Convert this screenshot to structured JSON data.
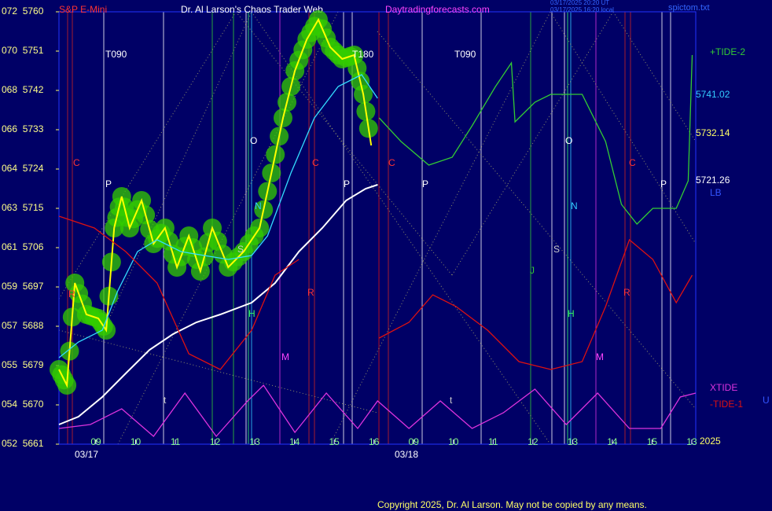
{
  "chart_data": {
    "type": "line",
    "title": "Dr. Al Larson's Chaos Trader Web",
    "subtitle": "S&P E-Mini",
    "site": "Daytradingforecasts.com",
    "stamps": [
      "03/17/2025 20:20 UT",
      "03/17/2025 16:20 local",
      "spictom.txt"
    ],
    "copyright": "Copyright 2025, Dr. Al Larson. May not be copied by any means.",
    "dates": [
      "03/17",
      "03/18",
      "2025"
    ],
    "ylim": [
      5661,
      5760
    ],
    "yticks": [
      {
        "value": 5760,
        "label": "072  5760"
      },
      {
        "value": 5751,
        "label": "070  5751"
      },
      {
        "value": 5742,
        "label": "068  5742"
      },
      {
        "value": 5733,
        "label": "066  5733"
      },
      {
        "value": 5724,
        "label": "064  5724"
      },
      {
        "value": 5715,
        "label": "063  5715"
      },
      {
        "value": 5706,
        "label": "061  5706"
      },
      {
        "value": 5697,
        "label": "059  5697"
      },
      {
        "value": 5688,
        "label": "057  5688"
      },
      {
        "value": 5679,
        "label": "055  5679"
      },
      {
        "value": 5670,
        "label": "054  5670"
      },
      {
        "value": 5661,
        "label": "052  5661"
      }
    ],
    "xlim": [
      -0.93,
      15.1
    ],
    "xticks": [
      {
        "value": 0,
        "label": "09"
      },
      {
        "value": 1,
        "label": "10"
      },
      {
        "value": 2,
        "label": "11"
      },
      {
        "value": 3,
        "label": "12"
      },
      {
        "value": 4,
        "label": "13"
      },
      {
        "value": 5,
        "label": "14"
      },
      {
        "value": 6,
        "label": "15"
      },
      {
        "value": 7,
        "label": "16"
      },
      {
        "value": 8,
        "label": "09"
      },
      {
        "value": 9,
        "label": "10"
      },
      {
        "value": 10,
        "label": "11"
      },
      {
        "value": 11,
        "label": "12"
      },
      {
        "value": 12,
        "label": "13"
      },
      {
        "value": 13,
        "label": "14"
      },
      {
        "value": 14,
        "label": "15"
      },
      {
        "value": 15,
        "label": "13"
      }
    ],
    "annotations": [
      "T090",
      "T180",
      "T090",
      "C",
      "C",
      "C",
      "C",
      "P",
      "P",
      "P",
      "P",
      "O",
      "O",
      "N",
      "N",
      "S",
      "S",
      "J",
      "H",
      "H",
      "R",
      "R",
      "R",
      "M",
      "M",
      "t",
      "t"
    ],
    "last_labels": [
      "5741.02",
      "5732.14",
      "5721.26",
      "LB",
      "U"
    ],
    "series": [
      {
        "color": "#ffff00",
        "x": [
          -0.93,
          -0.73,
          -0.53,
          -0.24,
          0.06,
          0.26,
          0.46,
          0.65,
          0.85,
          1.15,
          1.45,
          1.74,
          2.04,
          2.34,
          2.63,
          2.93,
          3.33,
          3.72,
          4.12,
          4.42,
          4.71,
          5.01,
          5.31,
          5.6,
          5.9,
          6.2,
          6.5,
          6.73,
          6.93
        ],
        "values": [
          5678.1,
          5674.5,
          5697.9,
          5690.7,
          5689.8,
          5687.1,
          5710.5,
          5717.7,
          5710.5,
          5716.8,
          5706.9,
          5710.5,
          5701.5,
          5708.7,
          5700.6,
          5710.5,
          5701.5,
          5705.1,
          5710.5,
          5723.1,
          5735.7,
          5746.5,
          5753.7,
          5758.2,
          5751.9,
          5749.2,
          5750.1,
          5741.1,
          5729.4
        ]
      },
      {
        "color": "#33ddff",
        "x": [
          -0.93,
          -0.44,
          0.16,
          0.55,
          1.05,
          1.54,
          2.14,
          2.73,
          3.33,
          3.92,
          4.32,
          4.91,
          5.5,
          6.1,
          6.69,
          7.09
        ],
        "values": [
          5680.8,
          5684.4,
          5687.1,
          5696.1,
          5705.1,
          5707.8,
          5705.1,
          5704.2,
          5703.3,
          5704.2,
          5708.7,
          5723.1,
          5735.7,
          5742.9,
          5745.6,
          5740.2
        ]
      },
      {
        "color": "#ffffff",
        "x": [
          -0.93,
          -0.44,
          0.16,
          0.75,
          1.35,
          1.94,
          2.53,
          3.13,
          3.92,
          4.51,
          5.11,
          5.7,
          6.3,
          6.79,
          7.09
        ],
        "values": [
          5665.5,
          5667.3,
          5671.8,
          5677.2,
          5682.6,
          5686.2,
          5688.9,
          5690.7,
          5693.4,
          5697.9,
          5705.1,
          5710.5,
          5716.8,
          5719.5,
          5720.4
        ]
      },
      {
        "name": "+TIDE-2",
        "color": "#33cc33",
        "x": [
          7.13,
          7.68,
          8.38,
          8.97,
          9.47,
          10.06,
          10.46,
          10.55,
          11.05,
          11.45,
          12.24,
          12.83,
          13.23,
          13.62,
          14.02,
          14.61,
          14.91,
          15.01
        ],
        "values": [
          5735.7,
          5730.3,
          5724.9,
          5726.7,
          5733.9,
          5742.9,
          5748.3,
          5734.8,
          5739.3,
          5741.1,
          5741.1,
          5730.3,
          5715.9,
          5711.4,
          5715,
          5715,
          5721.3,
          5750.1
        ]
      },
      {
        "name": "-TIDE-1",
        "color": "#dd1111",
        "x": [
          -0.93,
          -0.04,
          0.75,
          1.54,
          2.34,
          3.13,
          3.92,
          4.51,
          5.11,
          null,
          7.13,
          7.88,
          8.48,
          9.07,
          9.86,
          10.65,
          11.45,
          12.24,
          12.83,
          13.43,
          14.02,
          14.61,
          15.01
        ],
        "values": [
          5713.2,
          5710.5,
          5705.1,
          5697.9,
          5681.7,
          5678.1,
          5687.1,
          5699.7,
          5703.3,
          null,
          5685.3,
          5688.9,
          5695.2,
          5692.5,
          5687.1,
          5679.9,
          5678.1,
          5679.9,
          5692.5,
          5707.8,
          5703.3,
          5693.4,
          5699.7
        ]
      },
      {
        "name": "XTIDE",
        "color": "#dd33dd",
        "x": [
          -0.93,
          -0.14,
          0.65,
          1.45,
          2.24,
          3.03,
          3.82,
          4.22,
          5.01,
          5.8,
          6.59,
          7.09,
          7.88,
          8.67,
          9.47,
          10.26,
          11.05,
          11.84,
          12.63,
          13.43,
          14.22,
          14.71,
          15.1
        ],
        "values": [
          5664.6,
          5665.5,
          5669.1,
          5662.8,
          5672.7,
          5662.8,
          5670.9,
          5674.5,
          5663.7,
          5672.7,
          5664.6,
          5670.9,
          5664.6,
          5670.9,
          5664.6,
          5668.2,
          5673.6,
          5665.5,
          5672.7,
          5664.6,
          5664.6,
          5671.8,
          5672.7
        ]
      }
    ]
  }
}
